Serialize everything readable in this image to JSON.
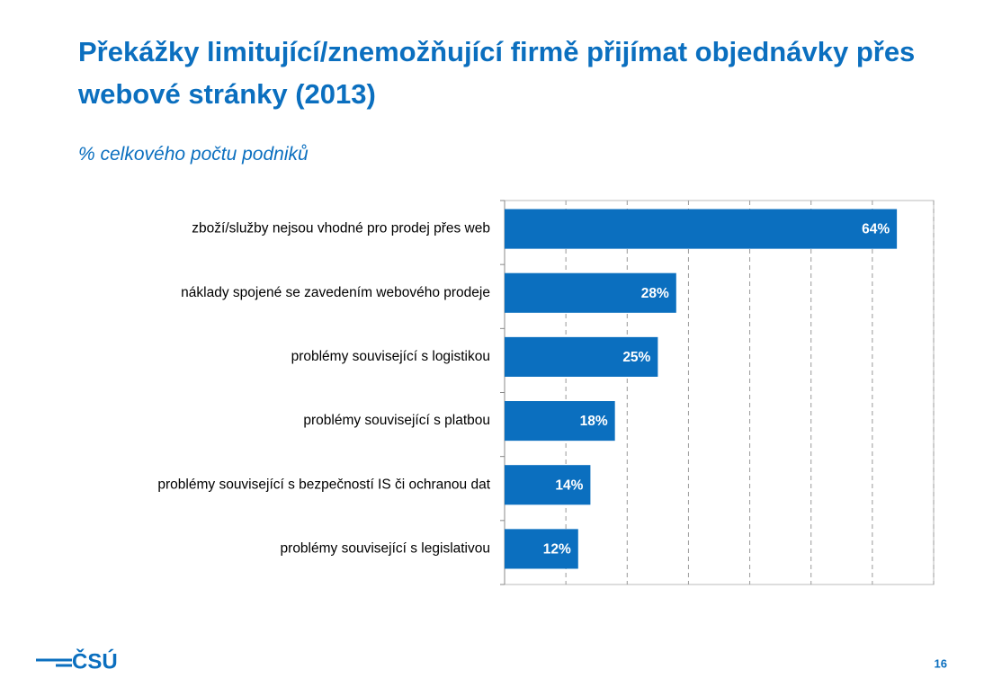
{
  "chart_data": {
    "type": "bar",
    "orientation": "horizontal",
    "title": "Překážky limitující/znemožňující firmě přijímat objednávky přes webové stránky (2013)",
    "subtitle": "% celkového počtu podniků",
    "categories": [
      "zboží/služby nejsou vhodné pro prodej přes web",
      "náklady spojené se zavedením webového prodeje",
      "problémy související s logistikou",
      "problémy související s platbou",
      "problémy související s bezpečností IS či ochranou dat",
      "problémy související s legislativou"
    ],
    "values": [
      64,
      28,
      25,
      18,
      14,
      12
    ],
    "value_labels": [
      "64%",
      "28%",
      "25%",
      "18%",
      "14%",
      "12%"
    ],
    "color": "#0b6fbf",
    "xlim": [
      0,
      70
    ],
    "xticks": [
      0,
      10,
      20,
      30,
      40,
      50,
      60,
      70
    ],
    "grid": true
  },
  "logo": "ČSÚ",
  "page_number": "16"
}
